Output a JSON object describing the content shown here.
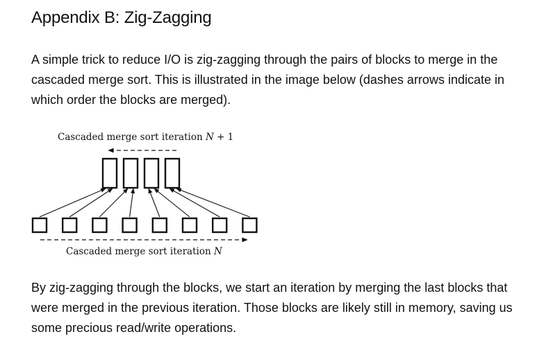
{
  "heading": "Appendix B: Zig-Zagging",
  "intro": "A simple trick to reduce I/O is zig-zagging through the pairs of blocks to merge in the cascaded merge sort. This is illustrated in the image below (dashes arrows indicate in which order the blocks are merged).",
  "figure": {
    "top_caption": "Cascaded merge sort iteration N + 1",
    "bottom_caption": "Cascaded merge sort iteration N",
    "top_block_count": 4,
    "bottom_block_count": 8
  },
  "outro": "By zig-zagging through the blocks, we start an iteration by merging the last blocks that were merged in the previous iteration. Those blocks are likely still in memory, saving us some precious read/write operations."
}
